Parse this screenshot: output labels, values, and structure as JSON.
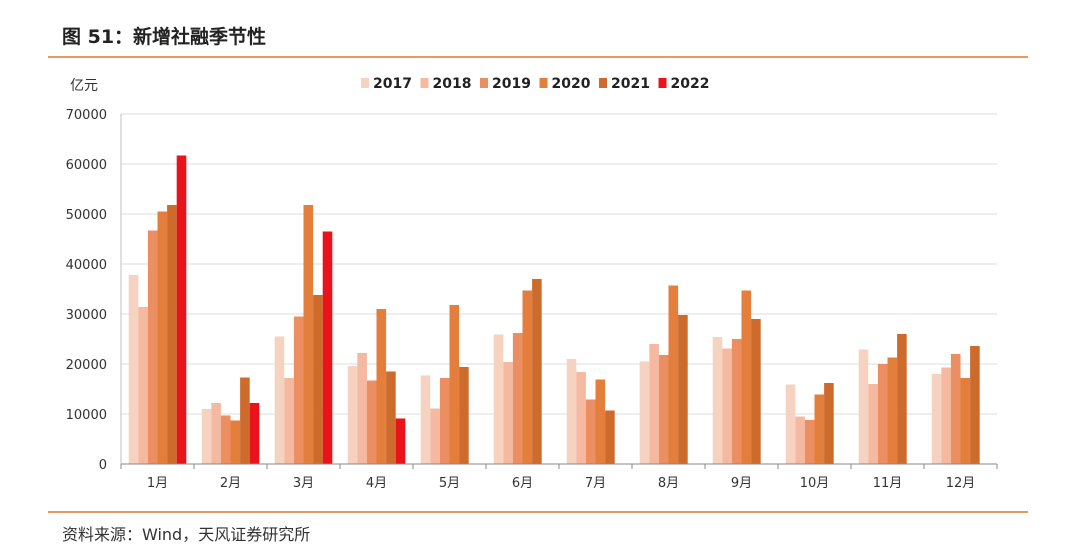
{
  "figure": {
    "title": "图 51：新增社融季节性",
    "source": "资料来源：Wind，天风证券研究所"
  },
  "chart_data": {
    "type": "bar",
    "ylabel": "亿元",
    "ylim": [
      0,
      70000
    ],
    "yticks": [
      0,
      10000,
      20000,
      30000,
      40000,
      50000,
      60000,
      70000
    ],
    "grid": true,
    "legend_position": "top",
    "categories": [
      "1月",
      "2月",
      "3月",
      "4月",
      "5月",
      "6月",
      "7月",
      "8月",
      "9月",
      "10月",
      "11月",
      "12月"
    ],
    "series": [
      {
        "name": "2017",
        "color": "#f6d2c0",
        "values": [
          37800,
          11000,
          25500,
          19600,
          17700,
          25900,
          21000,
          20500,
          25400,
          15900,
          22900,
          18000
        ]
      },
      {
        "name": "2018",
        "color": "#f4b9a0",
        "values": [
          31400,
          12200,
          17200,
          22200,
          11100,
          20400,
          18400,
          24000,
          23100,
          9500,
          16000,
          19300
        ]
      },
      {
        "name": "2019",
        "color": "#eb8f63",
        "values": [
          46700,
          9700,
          29500,
          16700,
          17200,
          26200,
          12900,
          21800,
          25000,
          8800,
          20000,
          22000
        ]
      },
      {
        "name": "2020",
        "color": "#e47e3d",
        "values": [
          50500,
          8700,
          51800,
          31000,
          31800,
          34700,
          16900,
          35700,
          34700,
          13900,
          21300,
          17200
        ]
      },
      {
        "name": "2021",
        "color": "#cd6b2c",
        "values": [
          51800,
          17300,
          33800,
          18500,
          19400,
          37000,
          10700,
          29800,
          29000,
          16200,
          26000,
          23600
        ]
      },
      {
        "name": "2022",
        "color": "#e8131b",
        "values": [
          61700,
          12200,
          46500,
          9100,
          null,
          null,
          null,
          null,
          null,
          null,
          null,
          null
        ]
      }
    ]
  }
}
